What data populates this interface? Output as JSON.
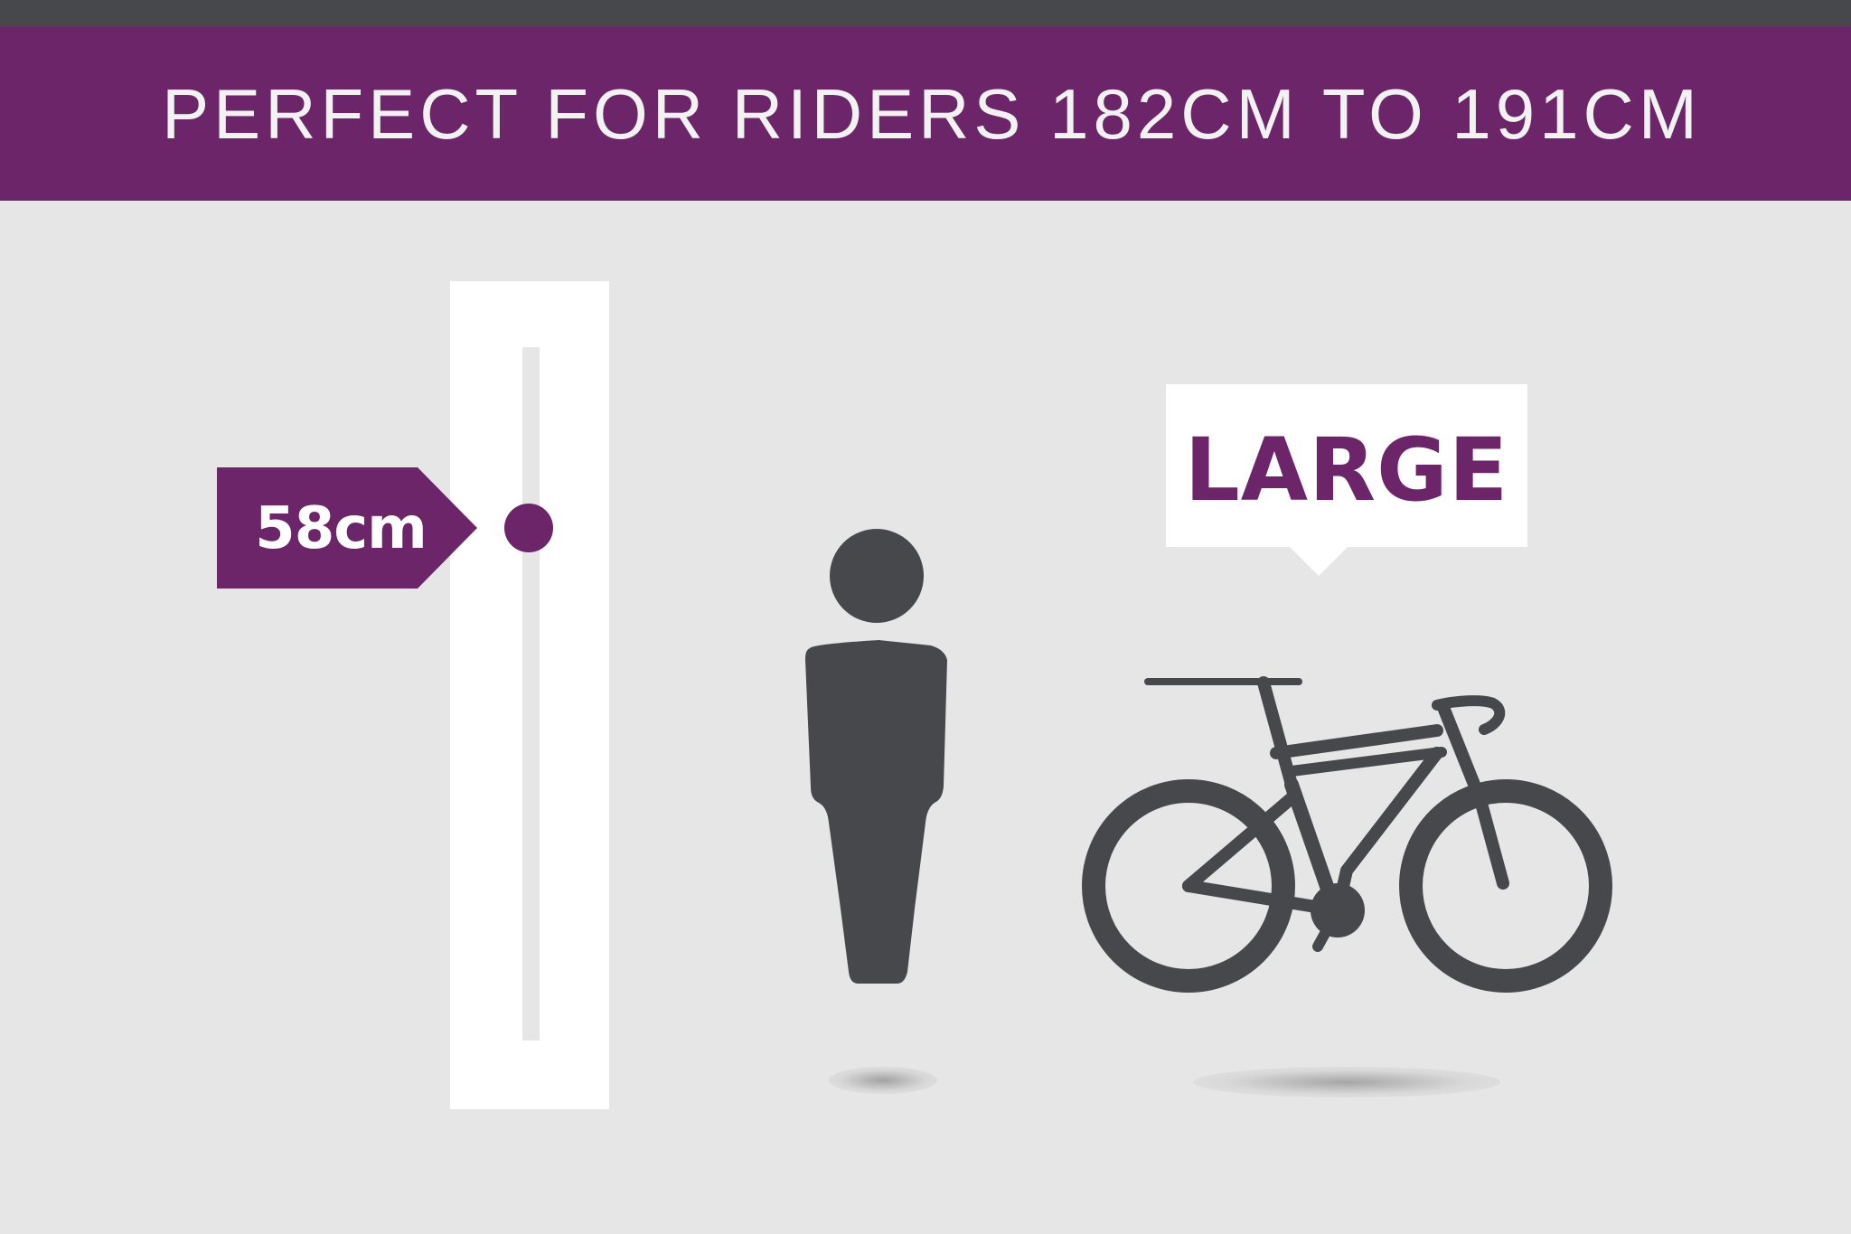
{
  "banner": {
    "title": "PERFECT FOR RIDERS 182CM TO 191CM"
  },
  "size_scale": {
    "frame_size_label": "58cm"
  },
  "recommendation": {
    "size_label": "LARGE"
  },
  "colors": {
    "brand_purple": "#6c2569",
    "icon_gray": "#47484b",
    "background": "#e6e6e6",
    "panel_white": "#ffffff",
    "banner_text": "#f2f2f2"
  },
  "icons": {
    "rider": "person-icon",
    "bike": "road-bike-icon"
  }
}
